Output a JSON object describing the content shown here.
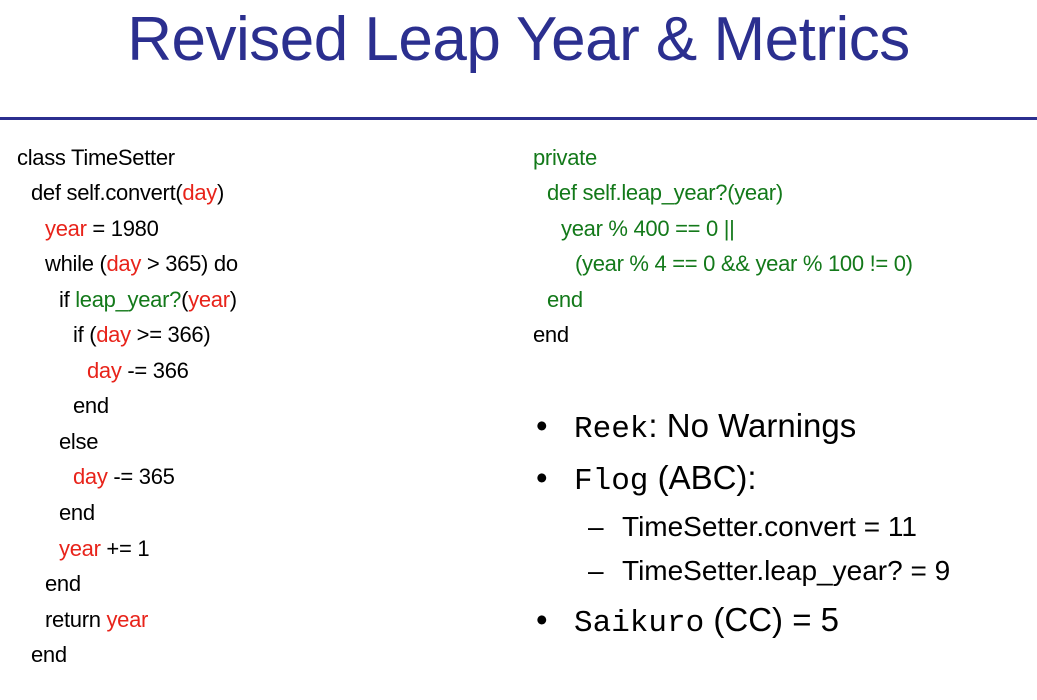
{
  "slide": {
    "title": "Revised Leap Year & Metrics"
  },
  "code_left": {
    "l1": "class TimeSetter",
    "l2_a": "def self.convert(",
    "l2_day": "day",
    "l2_b": ")",
    "l3_year": "year",
    "l3_b": " = 1980",
    "l4_a": "while (",
    "l4_day": "day",
    "l4_b": " > 365) do",
    "l5_a": "if ",
    "l5_fn": "leap_year?",
    "l5_b": "(",
    "l5_year": "year",
    "l5_c": ")",
    "l6_a": "if (",
    "l6_day": "day",
    "l6_b": " >= 366)",
    "l7_day": "day",
    "l7_b": " -= 366",
    "l8": "end",
    "l9": "else",
    "l10_day": "day",
    "l10_b": " -= 365",
    "l11": "end",
    "l12_year": "year",
    "l12_b": " += 1",
    "l13": "end",
    "l14_a": "return ",
    "l14_year": "year",
    "l15": "end"
  },
  "code_right": {
    "r1": "private",
    "r2": "def self.leap_year?(year)",
    "r3": "year % 400 == 0 ||",
    "r4": "(year % 4 == 0 && year % 100 != 0)",
    "r5": "end",
    "r6": "end"
  },
  "bullets": {
    "bullet_char": "•",
    "dash_char": "–",
    "reek_tool": "Reek",
    "reek_text": ": No Warnings",
    "flog_tool": "Flog",
    "flog_text": " (ABC):",
    "flog_convert": "TimeSetter.convert = 11",
    "flog_leap": "TimeSetter.leap_year? = 9",
    "saikuro_tool": "Saikuro",
    "saikuro_text": " (CC) = 5"
  },
  "colors": {
    "title": "#2b2f8f",
    "variable": "#e8231a",
    "method": "#13791a"
  }
}
